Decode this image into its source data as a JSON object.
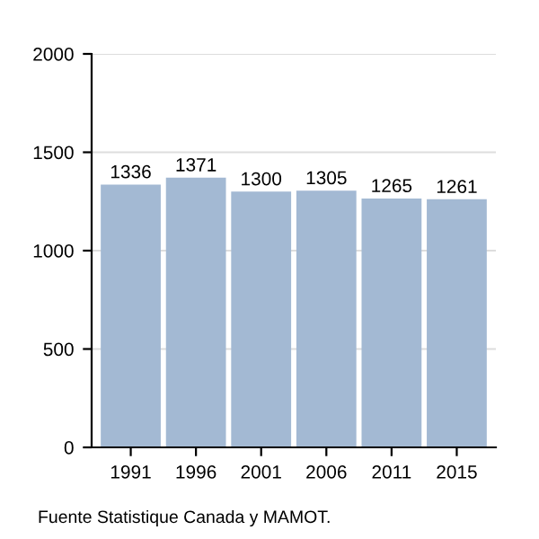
{
  "chart_data": {
    "type": "bar",
    "categories": [
      "1991",
      "1996",
      "2001",
      "2006",
      "2011",
      "2015"
    ],
    "values": [
      1336,
      1371,
      1300,
      1305,
      1265,
      1261
    ],
    "color": "#a3b9d3",
    "ylim": [
      0,
      2000
    ],
    "yticks": [
      0,
      500,
      1000,
      1500,
      2000
    ],
    "grid": "y",
    "data_labels": true,
    "annotations": [
      "Fuente Statistique Canada y MAMOT."
    ]
  }
}
